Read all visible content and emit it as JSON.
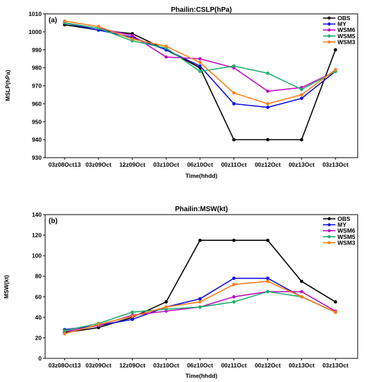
{
  "chart_data": [
    {
      "type": "line",
      "panel": "(a)",
      "title": "Phailin:CSLP(hPa)",
      "xlabel": "Time(hhdd)",
      "ylabel": "MSLP(hPa)",
      "categories": [
        "03z08Oct13",
        "03z09Oct",
        "12z09Oct",
        "03z10Oct",
        "06z10Oct",
        "00z11Oct",
        "00z12Oct",
        "00z13Oct",
        "03z13Oct"
      ],
      "ylim": [
        930,
        1010
      ],
      "yticks": [
        "930",
        "940",
        "950",
        "960",
        "970",
        "980",
        "990",
        "1000",
        "1010"
      ],
      "legend_position": "top-right",
      "series": [
        {
          "name": "OBS",
          "color": "#000000",
          "values": [
            1004,
            1001,
            999,
            990,
            980,
            940,
            940,
            940,
            990
          ]
        },
        {
          "name": "MY",
          "color": "#1010e0",
          "values": [
            1005,
            1001,
            997,
            990,
            981,
            960,
            958,
            963,
            978
          ]
        },
        {
          "name": "WSM6",
          "color": "#c010c0",
          "values": [
            1005,
            1002,
            998,
            986,
            985,
            980,
            967,
            969,
            978
          ]
        },
        {
          "name": "WSM5",
          "color": "#20b070",
          "values": [
            1005,
            1002,
            995,
            991,
            978,
            981,
            977,
            968,
            978
          ]
        },
        {
          "name": "WSM3",
          "color": "#ff7f1a",
          "values": [
            1006,
            1003,
            996,
            992,
            983,
            966,
            960,
            965,
            979
          ]
        }
      ]
    },
    {
      "type": "line",
      "panel": "(b)",
      "title": "Phailin:MSW(kt)",
      "xlabel": "Time(hhdd)",
      "ylabel": "MSW(kt)",
      "categories": [
        "03z08Oct13",
        "03z09Oct",
        "12z09Oct",
        "03z10Oct",
        "06z10Oct",
        "00z11Oct",
        "00z12Oct",
        "00z13Oct",
        "03z13Oct"
      ],
      "ylim": [
        0,
        140
      ],
      "yticks": [
        "0",
        "20",
        "40",
        "60",
        "80",
        "100",
        "120",
        "140"
      ],
      "legend_position": "top-right",
      "series": [
        {
          "name": "OBS",
          "color": "#000000",
          "values": [
            25,
            30,
            40,
            55,
            115,
            115,
            115,
            75,
            55
          ]
        },
        {
          "name": "MY",
          "color": "#1010e0",
          "values": [
            28,
            32,
            38,
            50,
            58,
            78,
            78,
            60,
            45
          ]
        },
        {
          "name": "WSM6",
          "color": "#c010c0",
          "values": [
            26,
            32,
            42,
            46,
            50,
            60,
            65,
            65,
            46
          ]
        },
        {
          "name": "WSM5",
          "color": "#20b070",
          "values": [
            27,
            34,
            45,
            48,
            50,
            55,
            65,
            60,
            45
          ]
        },
        {
          "name": "WSM3",
          "color": "#ff7f1a",
          "values": [
            24,
            33,
            41,
            50,
            55,
            72,
            75,
            60,
            45
          ]
        }
      ]
    }
  ]
}
